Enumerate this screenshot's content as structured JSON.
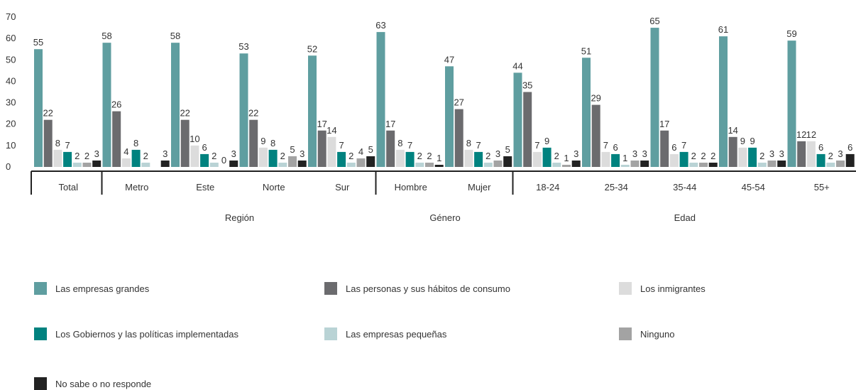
{
  "chart_data": {
    "type": "bar",
    "ylim": [
      0,
      70
    ],
    "yticks": [
      0,
      10,
      20,
      30,
      40,
      50,
      60,
      70
    ],
    "grid": false,
    "legend_position": "bottom",
    "categories": [
      "Total",
      "Metro",
      "Este",
      "Norte",
      "Sur",
      "Hombre",
      "Mujer",
      "18-24",
      "25-34",
      "35-44",
      "45-54",
      "55+"
    ],
    "groups": [
      {
        "label": "",
        "categories": [
          "Total"
        ]
      },
      {
        "label": "Región",
        "categories": [
          "Metro",
          "Este",
          "Norte",
          "Sur"
        ]
      },
      {
        "label": "Género",
        "categories": [
          "Hombre",
          "Mujer"
        ]
      },
      {
        "label": "Edad",
        "categories": [
          "18-24",
          "25-34",
          "35-44",
          "45-54",
          "55+"
        ]
      }
    ],
    "series": [
      {
        "name": "Las empresas grandes",
        "color": "#5f9ea0",
        "values": [
          55,
          58,
          58,
          53,
          52,
          63,
          47,
          44,
          51,
          65,
          61,
          59
        ]
      },
      {
        "name": "Las personas y sus hábitos de consumo",
        "color": "#6b6b6e",
        "values": [
          22,
          26,
          22,
          22,
          17,
          17,
          27,
          35,
          29,
          17,
          14,
          12
        ]
      },
      {
        "name": "Los inmigrantes",
        "color": "#dcdcdc",
        "values": [
          8,
          4,
          10,
          9,
          14,
          8,
          8,
          7,
          7,
          6,
          9,
          12
        ]
      },
      {
        "name": "Los Gobiernos y las políticas implementadas",
        "color": "#00827f",
        "values": [
          7,
          8,
          6,
          8,
          7,
          7,
          7,
          9,
          6,
          7,
          9,
          6
        ]
      },
      {
        "name": "Las empresas pequeñas",
        "color": "#b9d3d5",
        "values": [
          2,
          2,
          2,
          2,
          2,
          2,
          2,
          2,
          1,
          2,
          2,
          2
        ]
      },
      {
        "name": "Ninguno",
        "color": "#a3a3a3",
        "values": [
          2,
          null,
          0,
          5,
          4,
          2,
          3,
          1,
          3,
          2,
          3,
          3
        ]
      },
      {
        "name": "No sabe o no responde",
        "color": "#222222",
        "values": [
          3,
          3,
          3,
          3,
          5,
          1,
          5,
          3,
          3,
          2,
          3,
          6
        ]
      }
    ]
  }
}
